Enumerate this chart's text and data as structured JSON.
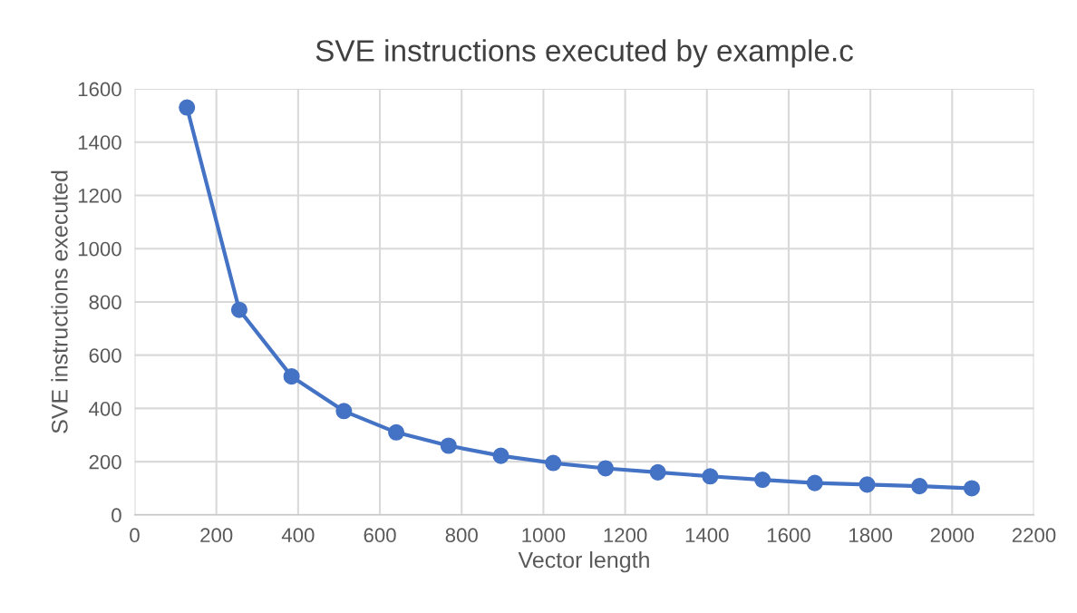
{
  "chart_data": {
    "type": "line",
    "title": "SVE instructions executed by example.c",
    "xlabel": "Vector length",
    "ylabel": "SVE instructions executed",
    "x": [
      128,
      256,
      384,
      512,
      640,
      768,
      896,
      1024,
      1152,
      1280,
      1408,
      1536,
      1664,
      1792,
      1920,
      2048
    ],
    "series": [
      {
        "color": "#4472c4",
        "values": [
          1530,
          770,
          520,
          390,
          310,
          260,
          222,
          195,
          175,
          160,
          145,
          132,
          120,
          114,
          108,
          100
        ]
      }
    ],
    "xlim": [
      0,
      2200
    ],
    "xticks": [
      0,
      200,
      400,
      600,
      800,
      1000,
      1200,
      1400,
      1600,
      1800,
      2000,
      2200
    ],
    "ylim": [
      0,
      1600
    ],
    "yticks": [
      0,
      200,
      400,
      600,
      800,
      1000,
      1200,
      1400,
      1600
    ],
    "grid": true,
    "marker": "circle",
    "line_style": "solid"
  }
}
